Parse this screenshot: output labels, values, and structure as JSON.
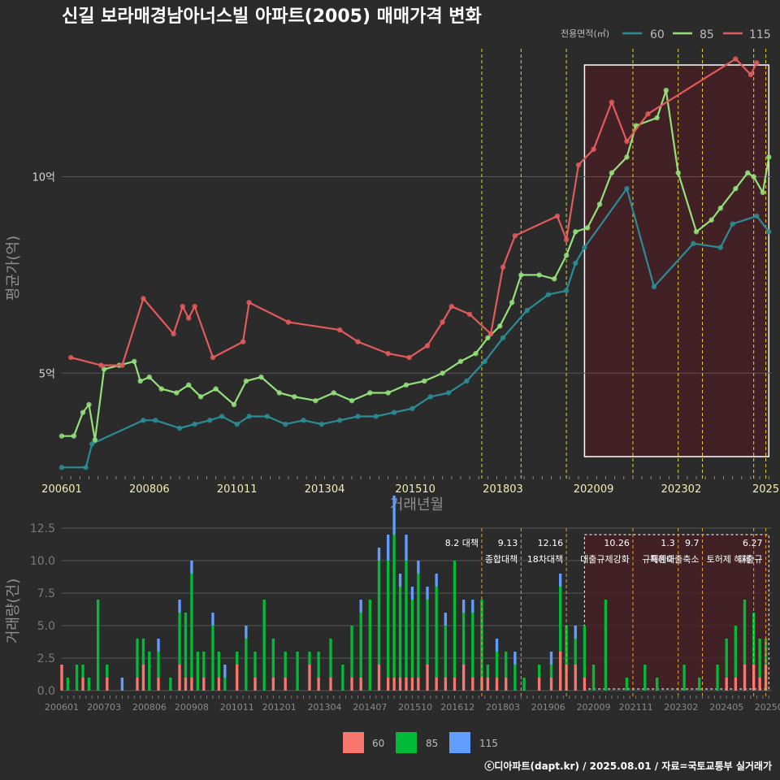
{
  "title": "신길 보라매경남아너스빌 아파트(2005) 매매가격 변화",
  "footer": "ⓒ디아파트(dapt.kr) / 2025.08.01 / 자료=국토교통부 실거래가",
  "colors": {
    "background": "#2b2b2c",
    "s60": "#2a8c94",
    "s85": "#93e07a",
    "s115": "#e35a5a",
    "bar60": "#f8766d",
    "bar85": "#00ba38",
    "bar115": "#619cff",
    "policy_line": "#e6d52a",
    "highlight_fill": "#4a1f24",
    "grid": "#555555"
  },
  "top_legend": {
    "title": "전용면적(㎡)",
    "items": [
      {
        "label": "60",
        "color": "#2a8c94"
      },
      {
        "label": "85",
        "color": "#93e07a"
      },
      {
        "label": "115",
        "color": "#e35a5a"
      }
    ]
  },
  "bottom_legend": {
    "items": [
      {
        "label": "60",
        "color": "#f8766d"
      },
      {
        "label": "85",
        "color": "#00ba38"
      },
      {
        "label": "115",
        "color": "#619cff"
      }
    ]
  },
  "chart_data": [
    {
      "type": "line",
      "xlabel": "거래년월",
      "ylabel": "평균가(억)",
      "x_ticks": [
        "200601",
        "200806",
        "201011",
        "201304",
        "201510",
        "201803",
        "202009",
        "202302",
        "2025"
      ],
      "y_ticks": [
        "5억",
        "10억"
      ],
      "y_tick_values": [
        5,
        10
      ],
      "ylim": [
        2.4,
        13.3
      ],
      "xlim": [
        "2006-01",
        "2025-08"
      ],
      "policy_dates": [
        "2017-08",
        "2018-09",
        "2019-12",
        "2021-10",
        "2023-01",
        "2023-09",
        "2025-02",
        "2025-06"
      ],
      "highlight_range": [
        "2020-06",
        "2025-07"
      ],
      "series": [
        {
          "name": "60",
          "points": [
            [
              "2006-01",
              2.6
            ],
            [
              "2006-09",
              2.6
            ],
            [
              "2006-11",
              3.2
            ],
            [
              "2008-04",
              3.8
            ],
            [
              "2008-08",
              3.8
            ],
            [
              "2009-04",
              3.6
            ],
            [
              "2009-09",
              3.7
            ],
            [
              "2010-02",
              3.8
            ],
            [
              "2010-06",
              3.9
            ],
            [
              "2010-11",
              3.7
            ],
            [
              "2011-03",
              3.9
            ],
            [
              "2011-09",
              3.9
            ],
            [
              "2012-03",
              3.7
            ],
            [
              "2012-09",
              3.8
            ],
            [
              "2013-03",
              3.7
            ],
            [
              "2013-09",
              3.8
            ],
            [
              "2014-03",
              3.9
            ],
            [
              "2014-09",
              3.9
            ],
            [
              "2015-03",
              4.0
            ],
            [
              "2015-09",
              4.1
            ],
            [
              "2016-03",
              4.4
            ],
            [
              "2016-09",
              4.5
            ],
            [
              "2017-03",
              4.8
            ],
            [
              "2017-09",
              5.3
            ],
            [
              "2018-03",
              5.9
            ],
            [
              "2018-11",
              6.6
            ],
            [
              "2019-06",
              7.0
            ],
            [
              "2019-12",
              7.1
            ],
            [
              "2020-03",
              7.8
            ],
            [
              "2020-06",
              8.2
            ],
            [
              "2021-08",
              9.7
            ],
            [
              "2022-05",
              7.2
            ],
            [
              "2023-06",
              8.3
            ],
            [
              "2024-03",
              8.2
            ],
            [
              "2024-07",
              8.8
            ],
            [
              "2025-03",
              9.0
            ],
            [
              "2025-07",
              8.6
            ]
          ]
        },
        {
          "name": "85",
          "points": [
            [
              "2006-01",
              3.4
            ],
            [
              "2006-05",
              3.4
            ],
            [
              "2006-08",
              4.0
            ],
            [
              "2006-10",
              4.2
            ],
            [
              "2006-12",
              3.3
            ],
            [
              "2007-03",
              5.1
            ],
            [
              "2007-08",
              5.2
            ],
            [
              "2008-01",
              5.3
            ],
            [
              "2008-03",
              4.8
            ],
            [
              "2008-06",
              4.9
            ],
            [
              "2008-10",
              4.6
            ],
            [
              "2009-03",
              4.5
            ],
            [
              "2009-07",
              4.7
            ],
            [
              "2009-11",
              4.4
            ],
            [
              "2010-04",
              4.6
            ],
            [
              "2010-10",
              4.2
            ],
            [
              "2011-02",
              4.8
            ],
            [
              "2011-07",
              4.9
            ],
            [
              "2012-01",
              4.5
            ],
            [
              "2012-06",
              4.4
            ],
            [
              "2013-01",
              4.3
            ],
            [
              "2013-07",
              4.5
            ],
            [
              "2014-01",
              4.3
            ],
            [
              "2014-07",
              4.5
            ],
            [
              "2015-01",
              4.5
            ],
            [
              "2015-07",
              4.7
            ],
            [
              "2016-01",
              4.8
            ],
            [
              "2016-07",
              5.0
            ],
            [
              "2017-01",
              5.3
            ],
            [
              "2017-06",
              5.5
            ],
            [
              "2017-10",
              5.9
            ],
            [
              "2018-02",
              6.2
            ],
            [
              "2018-06",
              6.8
            ],
            [
              "2018-09",
              7.5
            ],
            [
              "2019-03",
              7.5
            ],
            [
              "2019-08",
              7.4
            ],
            [
              "2019-12",
              8.0
            ],
            [
              "2020-03",
              8.6
            ],
            [
              "2020-07",
              8.7
            ],
            [
              "2020-11",
              9.3
            ],
            [
              "2021-03",
              10.1
            ],
            [
              "2021-08",
              10.5
            ],
            [
              "2021-11",
              11.3
            ],
            [
              "2022-06",
              11.5
            ],
            [
              "2022-09",
              12.2
            ],
            [
              "2023-01",
              10.1
            ],
            [
              "2023-07",
              8.6
            ],
            [
              "2023-12",
              8.9
            ],
            [
              "2024-03",
              9.2
            ],
            [
              "2024-08",
              9.7
            ],
            [
              "2024-12",
              10.1
            ],
            [
              "2025-02",
              10.0
            ],
            [
              "2025-05",
              9.6
            ],
            [
              "2025-07",
              10.5
            ]
          ]
        },
        {
          "name": "115",
          "points": [
            [
              "2006-04",
              5.4
            ],
            [
              "2007-02",
              5.2
            ],
            [
              "2007-09",
              5.2
            ],
            [
              "2008-04",
              6.9
            ],
            [
              "2009-02",
              6.0
            ],
            [
              "2009-05",
              6.7
            ],
            [
              "2009-07",
              6.4
            ],
            [
              "2009-09",
              6.7
            ],
            [
              "2010-03",
              5.4
            ],
            [
              "2011-01",
              5.8
            ],
            [
              "2011-03",
              6.8
            ],
            [
              "2012-04",
              6.3
            ],
            [
              "2013-09",
              6.1
            ],
            [
              "2014-03",
              5.8
            ],
            [
              "2015-01",
              5.5
            ],
            [
              "2015-08",
              5.4
            ],
            [
              "2016-02",
              5.7
            ],
            [
              "2016-07",
              6.3
            ],
            [
              "2016-10",
              6.7
            ],
            [
              "2017-04",
              6.5
            ],
            [
              "2017-11",
              6.0
            ],
            [
              "2018-03",
              7.7
            ],
            [
              "2018-07",
              8.5
            ],
            [
              "2019-09",
              9.0
            ],
            [
              "2019-12",
              8.4
            ],
            [
              "2020-04",
              10.3
            ],
            [
              "2020-09",
              10.7
            ],
            [
              "2021-03",
              11.9
            ],
            [
              "2021-08",
              10.9
            ],
            [
              "2022-03",
              11.6
            ],
            [
              "2024-08",
              13.0
            ],
            [
              "2025-01",
              12.6
            ],
            [
              "2025-03",
              12.9
            ]
          ]
        }
      ]
    },
    {
      "type": "bar",
      "stacked": true,
      "ylabel": "거래량(건)",
      "x_ticks": [
        "200601",
        "200703",
        "200806",
        "200908",
        "201011",
        "201201",
        "201304",
        "201407",
        "201510",
        "201612",
        "201803",
        "201906",
        "202009",
        "202111",
        "202302",
        "202405",
        "20250"
      ],
      "y_ticks": [
        "0.0",
        "2.5",
        "5.0",
        "7.5",
        "10.0",
        "12.5"
      ],
      "y_tick_values": [
        0,
        2.5,
        5,
        7.5,
        10,
        12.5
      ],
      "ylim": [
        0,
        12.5
      ],
      "policy_annotations": [
        {
          "date": "2017-08",
          "label": "8.2 대책",
          "label2": ""
        },
        {
          "date": "2018-09",
          "label": "9.13",
          "label2": "종합대책"
        },
        {
          "date": "2019-12",
          "label": "12.16",
          "label2": "18차대책"
        },
        {
          "date": "2021-10",
          "label": "10.26",
          "label2": "대출규제강화"
        },
        {
          "date": "2023-01",
          "label": "1.3",
          "label2": "규제완화"
        },
        {
          "date": "2023-09",
          "label": "9.7",
          "label2": "특례대출축소"
        },
        {
          "date": "2025-02",
          "label": "",
          "label2": "토허제 해제"
        },
        {
          "date": "2025-06",
          "label": "6.27",
          "label2": "대출규"
        }
      ],
      "highlight_range": [
        "2020-06",
        "2025-07"
      ],
      "monthly": [
        [
          "2006-01",
          2,
          0,
          0
        ],
        [
          "2006-03",
          0,
          1,
          0
        ],
        [
          "2006-06",
          0,
          2,
          0
        ],
        [
          "2006-08",
          1,
          1,
          0
        ],
        [
          "2006-10",
          0,
          1,
          0
        ],
        [
          "2007-01",
          0,
          7,
          0
        ],
        [
          "2007-04",
          1,
          1,
          0
        ],
        [
          "2007-09",
          0,
          0,
          1
        ],
        [
          "2008-02",
          1,
          3,
          0
        ],
        [
          "2008-04",
          2,
          2,
          0
        ],
        [
          "2008-06",
          0,
          3,
          0
        ],
        [
          "2008-09",
          1,
          2,
          1
        ],
        [
          "2009-01",
          0,
          1,
          0
        ],
        [
          "2009-04",
          2,
          4,
          1
        ],
        [
          "2009-06",
          1,
          5,
          0
        ],
        [
          "2009-08",
          1,
          8,
          1
        ],
        [
          "2009-10",
          0,
          3,
          0
        ],
        [
          "2009-12",
          1,
          2,
          0
        ],
        [
          "2010-03",
          0,
          5,
          1
        ],
        [
          "2010-05",
          1,
          2,
          0
        ],
        [
          "2010-07",
          0,
          1,
          1
        ],
        [
          "2010-11",
          2,
          1,
          0
        ],
        [
          "2011-02",
          0,
          4,
          1
        ],
        [
          "2011-05",
          1,
          2,
          0
        ],
        [
          "2011-08",
          0,
          7,
          0
        ],
        [
          "2011-11",
          1,
          3,
          0
        ],
        [
          "2012-03",
          1,
          2,
          0
        ],
        [
          "2012-07",
          0,
          3,
          0
        ],
        [
          "2012-11",
          2,
          1,
          0
        ],
        [
          "2013-02",
          1,
          2,
          0
        ],
        [
          "2013-06",
          1,
          3,
          0
        ],
        [
          "2013-10",
          0,
          2,
          0
        ],
        [
          "2014-01",
          1,
          4,
          0
        ],
        [
          "2014-04",
          1,
          5,
          1
        ],
        [
          "2014-07",
          0,
          7,
          0
        ],
        [
          "2014-10",
          2,
          8,
          1
        ],
        [
          "2015-01",
          1,
          9,
          2
        ],
        [
          "2015-03",
          1,
          11,
          3
        ],
        [
          "2015-05",
          1,
          7,
          1
        ],
        [
          "2015-07",
          1,
          9,
          2
        ],
        [
          "2015-09",
          1,
          6,
          1
        ],
        [
          "2015-11",
          1,
          8,
          1
        ],
        [
          "2016-02",
          2,
          5,
          1
        ],
        [
          "2016-05",
          1,
          7,
          1
        ],
        [
          "2016-08",
          1,
          4,
          1
        ],
        [
          "2016-11",
          1,
          9,
          0
        ],
        [
          "2017-02",
          2,
          4,
          1
        ],
        [
          "2017-05",
          1,
          5,
          1
        ],
        [
          "2017-08",
          1,
          6,
          0
        ],
        [
          "2017-10",
          1,
          1,
          0
        ],
        [
          "2018-01",
          1,
          2,
          1
        ],
        [
          "2018-04",
          1,
          2,
          0
        ],
        [
          "2018-07",
          0,
          2,
          1
        ],
        [
          "2018-10",
          0,
          1,
          0
        ],
        [
          "2019-03",
          1,
          1,
          0
        ],
        [
          "2019-07",
          1,
          1,
          1
        ],
        [
          "2019-10",
          3,
          5,
          1
        ],
        [
          "2019-12",
          2,
          3,
          0
        ],
        [
          "2020-03",
          2,
          2,
          1
        ],
        [
          "2020-06",
          1,
          4,
          0
        ],
        [
          "2020-09",
          0,
          2,
          0
        ],
        [
          "2021-01",
          0,
          7,
          0
        ],
        [
          "2021-08",
          0,
          1,
          0
        ],
        [
          "2022-02",
          0,
          2,
          0
        ],
        [
          "2022-06",
          0,
          1,
          0
        ],
        [
          "2023-03",
          0,
          2,
          0
        ],
        [
          "2023-08",
          0,
          1,
          0
        ],
        [
          "2024-02",
          0,
          2,
          0
        ],
        [
          "2024-05",
          1,
          3,
          0
        ],
        [
          "2024-08",
          1,
          4,
          0
        ],
        [
          "2024-11",
          2,
          5,
          0
        ],
        [
          "2025-02",
          2,
          4,
          0
        ],
        [
          "2025-04",
          1,
          3,
          0
        ],
        [
          "2025-06",
          2,
          2,
          0
        ]
      ]
    }
  ]
}
